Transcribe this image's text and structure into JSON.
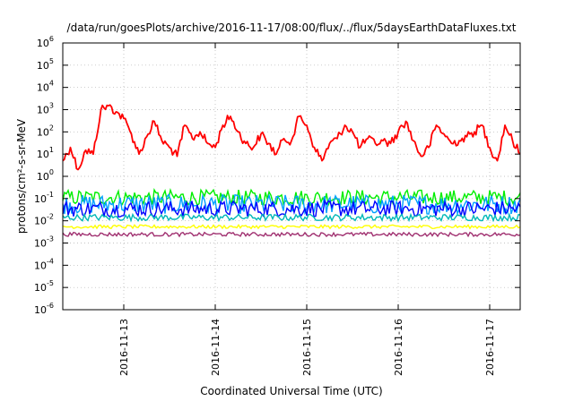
{
  "chart_data": {
    "type": "line",
    "title": "/data/run/goesPlots/archive/2016-11-17/08:00/flux/../flux/5daysEarthDataFluxes.txt",
    "xlabel": "Coordinated Universal Time (UTC)",
    "ylabel": "protons/cm²-s-sr-MeV",
    "y_scale": "log",
    "ylim": [
      1e-06,
      1000000.0
    ],
    "y_ticks": [
      {
        "base": "10",
        "exp": "-6"
      },
      {
        "base": "10",
        "exp": "-5"
      },
      {
        "base": "10",
        "exp": "-4"
      },
      {
        "base": "10",
        "exp": "-3"
      },
      {
        "base": "10",
        "exp": "-2"
      },
      {
        "base": "10",
        "exp": "-1"
      },
      {
        "base": "10",
        "exp": "0"
      },
      {
        "base": "10",
        "exp": "1"
      },
      {
        "base": "10",
        "exp": "2"
      },
      {
        "base": "10",
        "exp": "3"
      },
      {
        "base": "10",
        "exp": "4"
      },
      {
        "base": "10",
        "exp": "5"
      },
      {
        "base": "10",
        "exp": "6"
      }
    ],
    "x_range": [
      "2016-11-12 08:00",
      "2016-11-17 08:00"
    ],
    "x_ticks": [
      "2016-11-13",
      "2016-11-14",
      "2016-11-15",
      "2016-11-16",
      "2016-11-17"
    ],
    "grid": true,
    "series": [
      {
        "color": "#ff0000",
        "x": [
          "2016-11-12 08:00",
          "2016-11-12 10:00",
          "2016-11-12 12:00",
          "2016-11-12 14:00",
          "2016-11-12 16:00",
          "2016-11-12 18:00",
          "2016-11-12 20:00",
          "2016-11-12 22:00",
          "2016-11-13 00:00",
          "2016-11-13 02:00",
          "2016-11-13 04:00",
          "2016-11-13 06:00",
          "2016-11-13 08:00",
          "2016-11-13 10:00",
          "2016-11-13 12:00",
          "2016-11-13 14:00",
          "2016-11-13 16:00",
          "2016-11-13 18:00",
          "2016-11-13 20:00",
          "2016-11-13 22:00",
          "2016-11-14 00:00",
          "2016-11-14 02:00",
          "2016-11-14 04:00",
          "2016-11-14 06:00",
          "2016-11-14 08:00",
          "2016-11-14 10:00",
          "2016-11-14 12:00",
          "2016-11-14 14:00",
          "2016-11-14 16:00",
          "2016-11-14 18:00",
          "2016-11-14 20:00",
          "2016-11-14 22:00",
          "2016-11-15 00:00",
          "2016-11-15 02:00",
          "2016-11-15 04:00",
          "2016-11-15 06:00",
          "2016-11-15 08:00",
          "2016-11-15 10:00",
          "2016-11-15 12:00",
          "2016-11-15 14:00",
          "2016-11-15 16:00",
          "2016-11-15 18:00",
          "2016-11-15 20:00",
          "2016-11-15 22:00",
          "2016-11-16 00:00",
          "2016-11-16 02:00",
          "2016-11-16 04:00",
          "2016-11-16 06:00",
          "2016-11-16 08:00",
          "2016-11-16 10:00",
          "2016-11-16 12:00",
          "2016-11-16 14:00",
          "2016-11-16 16:00",
          "2016-11-16 18:00",
          "2016-11-16 20:00",
          "2016-11-16 22:00",
          "2016-11-17 00:00",
          "2016-11-17 02:00",
          "2016-11-17 04:00",
          "2016-11-17 06:00",
          "2016-11-17 08:00"
        ],
        "y": [
          5,
          20,
          2,
          15,
          10,
          1000,
          1500,
          800,
          400,
          80,
          10,
          60,
          300,
          40,
          20,
          8,
          200,
          50,
          100,
          30,
          20,
          200,
          500,
          100,
          30,
          20,
          80,
          30,
          10,
          50,
          40,
          500,
          200,
          20,
          5,
          30,
          50,
          200,
          100,
          20,
          50,
          30,
          40,
          30,
          100,
          300,
          40,
          8,
          20,
          200,
          80,
          30,
          40,
          60,
          100,
          200,
          20,
          5,
          200,
          40,
          10
        ]
      },
      {
        "color": "#00ee00",
        "y_band": [
          0.05,
          0.25
        ]
      },
      {
        "color": "#00a0ff",
        "y_band": [
          0.02,
          0.15
        ]
      },
      {
        "color": "#0000ff",
        "y_band": [
          0.015,
          0.08
        ]
      },
      {
        "color": "#00b8b8",
        "y_band": [
          0.01,
          0.02
        ]
      },
      {
        "color": "#ffff00",
        "y_band": [
          0.0045,
          0.0065
        ]
      },
      {
        "color": "#a03070",
        "y_band": [
          0.002,
          0.003
        ]
      }
    ]
  }
}
